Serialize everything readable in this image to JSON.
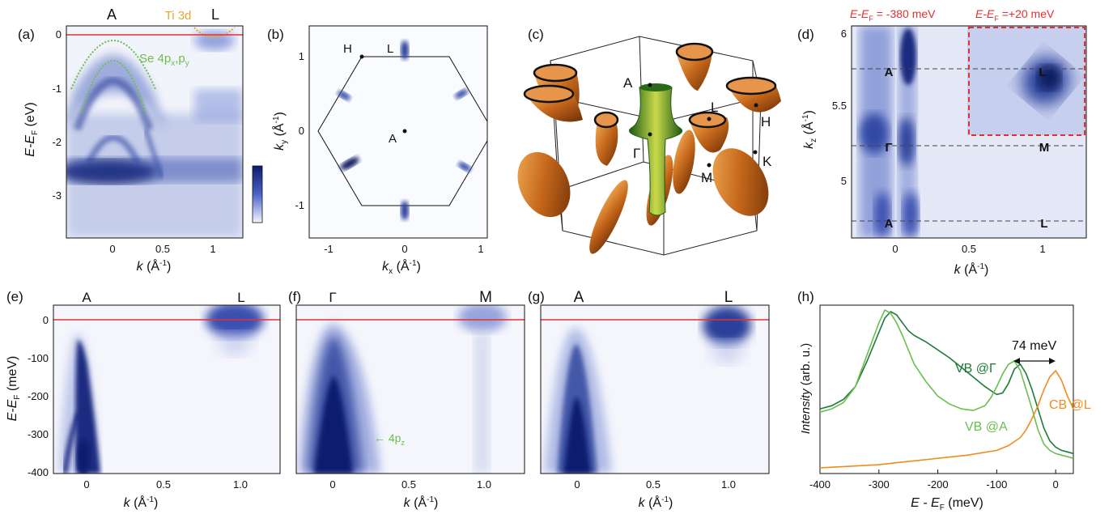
{
  "colors": {
    "blue": "#2b3f9a",
    "green": "#6bbf4e",
    "darkgreen": "#1e7a3a",
    "orange": "#f08c1e",
    "red": "#e53030",
    "ti": "#e9a532"
  },
  "panels": {
    "a": {
      "label": "(a)",
      "top_a": "A",
      "top_l": "L",
      "ti": "Ti 3d",
      "se": "Se 4p",
      "se_sub1": "x",
      "se_comma": ",p",
      "se_sub2": "y",
      "ylabel": "E-E",
      "ylabel_sub": "F",
      "ylabel_unit": " (eV)",
      "xlabel": "k",
      "xlabel_unit": " (Å",
      "xlabel_exp": "-1",
      "xlabel_close": ")",
      "yticks": [
        "0",
        "-1",
        "-2",
        "-3"
      ],
      "xticks": [
        "0",
        "0.5",
        "1"
      ]
    },
    "b": {
      "label": "(b)",
      "H": "H",
      "L": "L",
      "A": "A",
      "ylabel": "k",
      "ylabel_sub": "y",
      "ylabel_unit": " (Å",
      "ylabel_exp": "-1",
      "ylabel_close": ")",
      "xlabel": "k",
      "xlabel_sub": "x",
      "xlabel_unit": " (Å",
      "xlabel_exp": "-1",
      "xlabel_close": ")",
      "yticks": [
        "1",
        "0",
        "-1"
      ],
      "xticks": [
        "-1",
        "0",
        "1"
      ]
    },
    "c": {
      "label": "(c)",
      "A": "A",
      "L": "L",
      "H": "H",
      "G": "Γ",
      "M": "M",
      "K": "K"
    },
    "d": {
      "label": "(d)",
      "title1": "E-E",
      "title1_sub": "F",
      "title1_val": " = -380 meV",
      "title2": "E-E",
      "title2_sub": "F",
      "title2_val": " =+20 meV",
      "A1": "A",
      "L1": "L",
      "G": "Γ",
      "M": "M",
      "A2": "A",
      "L2": "L",
      "ylabel": "k",
      "ylabel_sub": "z",
      "ylabel_unit": " (Å",
      "ylabel_exp": "-1",
      "ylabel_close": ")",
      "xlabel": "k",
      "xlabel_unit": "  (Å",
      "xlabel_exp": "-1",
      "xlabel_close": ")",
      "yticks": [
        "6",
        "5.5",
        "5"
      ],
      "xticks": [
        "0",
        "0.5",
        "1"
      ]
    },
    "e": {
      "label": "(e)",
      "A": "A",
      "L": "L",
      "ylabel": "E-E",
      "ylabel_sub": "F",
      "ylabel_unit": " (meV)",
      "yticks": [
        "0",
        "-100",
        "-200",
        "-300",
        "-400"
      ],
      "xticks": [
        "0",
        "0.5",
        "1.0"
      ],
      "xlabel": "k",
      "xlabel_unit": " (Å",
      "xlabel_exp": "-1",
      "xlabel_close": ")"
    },
    "f": {
      "label": "(f)",
      "G": "Γ",
      "M": "M",
      "arrow": "← 4p",
      "arrow_sub": "z",
      "xticks": [
        "0",
        "0.5",
        "1.0"
      ],
      "xlabel": "k",
      "xlabel_unit": " (Å",
      "xlabel_exp": "-1",
      "xlabel_close": ")"
    },
    "g": {
      "label": "(g)",
      "A": "A",
      "L": "L",
      "xticks": [
        "0",
        "0.5",
        "1.0"
      ],
      "xlabel": "k",
      "xlabel_unit": " (Å",
      "xlabel_exp": "-1",
      "xlabel_close": ")"
    },
    "h": {
      "label": "(h)",
      "gap": "74 meV",
      "vbg": "VB @Γ",
      "vba": "VB @A",
      "cbl": "CB @L",
      "ylabel": "Intensity",
      "ylabel_unit": " (arb. u.)",
      "xlabel": "E - E",
      "xlabel_sub": "F",
      "xlabel_unit": " (meV)",
      "xticks": [
        "-400",
        "-300",
        "-200",
        "-100",
        "0"
      ]
    }
  },
  "chart_data": {
    "type": "line",
    "xlabel": "E - EF (meV)",
    "ylabel": "Intensity (arb. u.)",
    "xlim": [
      -400,
      30
    ],
    "series": [
      {
        "name": "VB @Γ",
        "color": "#1e7a3a",
        "x": [
          -400,
          -380,
          -360,
          -340,
          -320,
          -300,
          -290,
          -280,
          -270,
          -260,
          -250,
          -240,
          -220,
          -200,
          -180,
          -160,
          -140,
          -120,
          -100,
          -90,
          -80,
          -70,
          -60,
          -50,
          -40,
          -30,
          -20,
          -10,
          0,
          10,
          20,
          30
        ],
        "y": [
          0.38,
          0.4,
          0.44,
          0.52,
          0.68,
          0.86,
          0.95,
          0.99,
          0.97,
          0.92,
          0.87,
          0.84,
          0.8,
          0.75,
          0.7,
          0.64,
          0.58,
          0.52,
          0.47,
          0.48,
          0.54,
          0.63,
          0.66,
          0.6,
          0.5,
          0.38,
          0.26,
          0.18,
          0.14,
          0.12,
          0.11,
          0.1
        ]
      },
      {
        "name": "VB @A",
        "color": "#6bbf4e",
        "x": [
          -400,
          -380,
          -360,
          -340,
          -320,
          -300,
          -290,
          -280,
          -270,
          -260,
          -250,
          -240,
          -220,
          -200,
          -180,
          -160,
          -140,
          -120,
          -110,
          -100,
          -90,
          -80,
          -70,
          -60,
          -50,
          -40,
          -30,
          -20,
          -10,
          0,
          10,
          20,
          30
        ],
        "y": [
          0.36,
          0.38,
          0.42,
          0.52,
          0.72,
          0.92,
          1.0,
          0.98,
          0.92,
          0.84,
          0.75,
          0.66,
          0.55,
          0.46,
          0.41,
          0.38,
          0.37,
          0.4,
          0.45,
          0.52,
          0.6,
          0.66,
          0.68,
          0.62,
          0.5,
          0.38,
          0.25,
          0.16,
          0.12,
          0.1,
          0.09,
          0.08,
          0.07
        ]
      },
      {
        "name": "CB @L",
        "color": "#f08c1e",
        "x": [
          -400,
          -350,
          -300,
          -250,
          -200,
          -150,
          -100,
          -80,
          -60,
          -50,
          -40,
          -30,
          -20,
          -10,
          0,
          10,
          20,
          30
        ],
        "y": [
          0.01,
          0.02,
          0.03,
          0.05,
          0.07,
          0.09,
          0.12,
          0.15,
          0.2,
          0.25,
          0.32,
          0.4,
          0.5,
          0.58,
          0.62,
          0.56,
          0.46,
          0.38
        ]
      }
    ]
  }
}
